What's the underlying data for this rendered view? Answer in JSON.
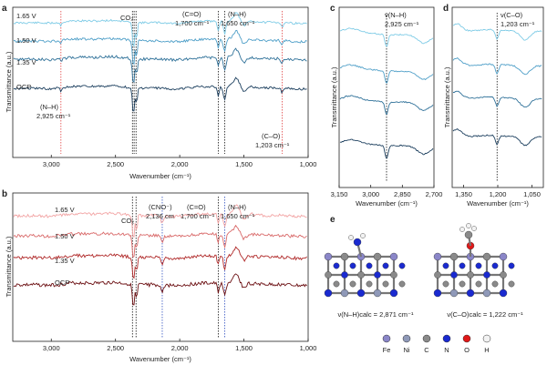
{
  "chart_data": [
    {
      "panel": "a",
      "type": "line",
      "xlabel": "Wavenumber (cm⁻¹)",
      "ylabel": "Transmittance (a.u.)",
      "xlim": [
        3300,
        1000
      ],
      "x_ticks": [
        "3,000",
        "2,500",
        "2,000",
        "1,500",
        "1,000"
      ],
      "series": [
        {
          "name": "1.65 V",
          "color": "#7ecbe6"
        },
        {
          "name": "1.50 V",
          "color": "#4f9fc8"
        },
        {
          "name": "1.35 V",
          "color": "#2f7199"
        },
        {
          "name": "OCP",
          "color": "#1c3f5e"
        }
      ],
      "annotations": [
        "CO₂",
        "(C=O)",
        "1,700 cm⁻¹",
        "(N–H)",
        "1,650 cm⁻¹",
        "(N–H)",
        "2,925 cm⁻¹",
        "(C–O)",
        "1,203 cm⁻¹"
      ]
    },
    {
      "panel": "b",
      "type": "line",
      "xlabel": "Wavenumber (cm⁻¹)",
      "ylabel": "Transmittance (a.u.)",
      "xlim": [
        3300,
        1000
      ],
      "x_ticks": [
        "3,000",
        "2,500",
        "2,000",
        "1,500",
        "1,000"
      ],
      "series": [
        {
          "name": "1.65 V",
          "color": "#f2a3a3"
        },
        {
          "name": "1.50 V",
          "color": "#d96a6a"
        },
        {
          "name": "1.35 V",
          "color": "#b02a2a"
        },
        {
          "name": "OCP",
          "color": "#6b0f12"
        }
      ],
      "annotations": [
        "CO₂",
        "(CNO⁻)",
        "2,136 cm",
        "(C=O)",
        "1,700 cm⁻¹",
        "(N–H)",
        "1,650 cm⁻¹"
      ]
    },
    {
      "panel": "c",
      "type": "line",
      "xlabel": "Wavenumber (cm⁻¹)",
      "ylabel": "Transmittance (a.u.)",
      "xlim": [
        3150,
        2700
      ],
      "x_ticks": [
        "3,150",
        "3,000",
        "2,850",
        "2,700"
      ],
      "annotations": [
        "ν(N–H)",
        "2,925 cm⁻¹"
      ]
    },
    {
      "panel": "d",
      "type": "line",
      "xlabel": "Wavenumber (cm⁻¹)",
      "ylabel": "Transmittance (a.u.)",
      "xlim": [
        1400,
        1000
      ],
      "x_ticks": [
        "1,350",
        "1,200",
        "1,050"
      ],
      "annotations": [
        "ν(C–O)",
        "1,203 cm⁻¹"
      ]
    }
  ],
  "panel_e": {
    "letter": "e",
    "caption_left": "ν(N–H)calc = 2,871 cm⁻¹",
    "caption_right": "ν(C–O)calc = 1,222 cm⁻¹",
    "legend": [
      {
        "label": "Fe",
        "color": "#8a86c8"
      },
      {
        "label": "Ni",
        "color": "#8f99b8"
      },
      {
        "label": "C",
        "color": "#8a8a8a"
      },
      {
        "label": "N",
        "color": "#1a2ad0"
      },
      {
        "label": "O",
        "color": "#e01818"
      },
      {
        "label": "H",
        "color": "#f2f2f2"
      }
    ]
  },
  "letters": {
    "a": "a",
    "b": "b",
    "c": "c",
    "d": "d"
  },
  "colors": {
    "dotted_black": "#111111",
    "dotted_red": "#e04040",
    "dotted_blue": "#3050c0"
  }
}
